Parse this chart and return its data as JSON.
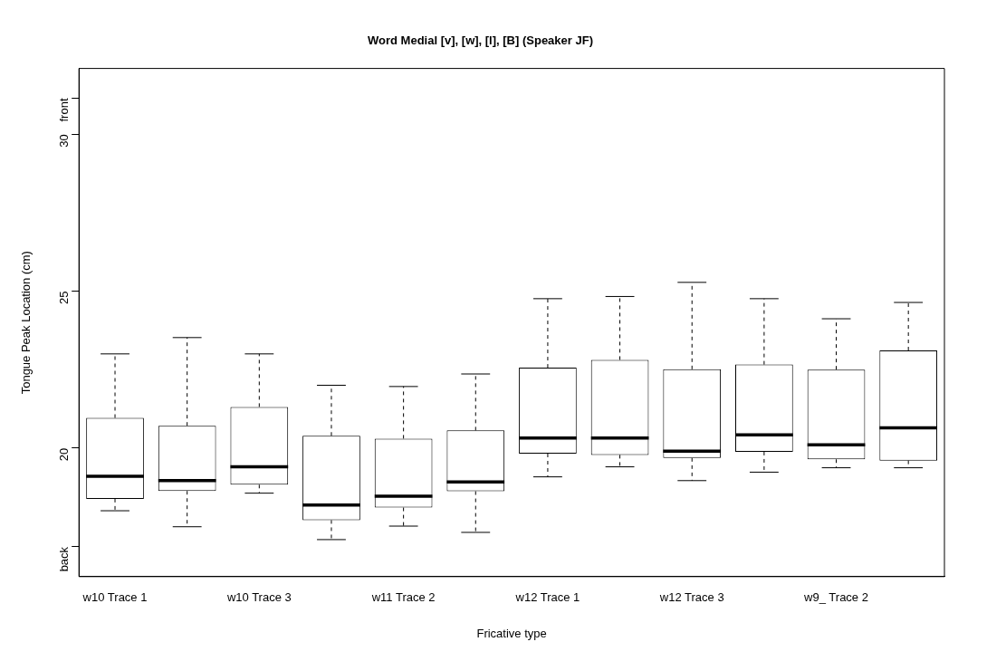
{
  "chart_data": {
    "type": "box",
    "title": "Word Medial [v], [w], [l], [B] (Speaker JF)",
    "xlabel": "Fricative type",
    "ylabel": "Tongue Peak Location (cm)",
    "categories": [
      "w10 Trace 1",
      null,
      "w10 Trace 3",
      null,
      "w11 Trace 2",
      null,
      "w12 Trace 1",
      null,
      "w12 Trace 3",
      null,
      "w9_ Trace 2",
      null
    ],
    "boxes": [
      {
        "low": 18.0,
        "q1": 18.38,
        "median": 19.1,
        "q3": 20.96,
        "high": 23.0
      },
      {
        "low": 17.49,
        "q1": 18.63,
        "median": 18.96,
        "q3": 20.71,
        "high": 23.52
      },
      {
        "low": 18.56,
        "q1": 18.83,
        "median": 19.4,
        "q3": 21.31,
        "high": 23.0
      },
      {
        "low": 17.08,
        "q1": 17.7,
        "median": 18.18,
        "q3": 20.39,
        "high": 22.0
      },
      {
        "low": 17.51,
        "q1": 18.1,
        "median": 18.46,
        "q3": 20.3,
        "high": 21.96
      },
      {
        "low": 17.31,
        "q1": 18.62,
        "median": 18.92,
        "q3": 20.56,
        "high": 22.36
      },
      {
        "low": 19.08,
        "q1": 19.82,
        "median": 20.32,
        "q3": 22.56,
        "high": 24.76
      },
      {
        "low": 19.4,
        "q1": 19.78,
        "median": 20.32,
        "q3": 22.81,
        "high": 24.83
      },
      {
        "low": 18.96,
        "q1": 19.68,
        "median": 19.9,
        "q3": 22.51,
        "high": 25.28
      },
      {
        "low": 19.23,
        "q1": 19.88,
        "median": 20.42,
        "q3": 22.66,
        "high": 24.76
      },
      {
        "low": 19.37,
        "q1": 19.64,
        "median": 20.1,
        "q3": 22.5,
        "high": 24.12
      },
      {
        "low": 19.37,
        "q1": 19.6,
        "median": 20.64,
        "q3": 23.11,
        "high": 24.64
      }
    ],
    "ylim": [
      15.9,
      32.1
    ],
    "yticks": [
      {
        "value": 16.85,
        "label": "back"
      },
      20,
      25,
      30,
      {
        "value": 31.15,
        "label": "front"
      }
    ]
  }
}
